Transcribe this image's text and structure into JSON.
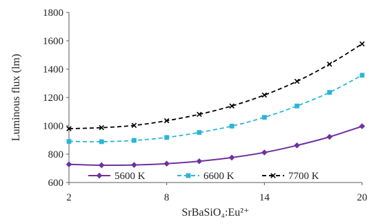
{
  "chart_data": {
    "type": "line",
    "xlabel": "SrBaSiO₄:Eu²⁺",
    "ylabel": "Luminous flux (lm)",
    "xlim": [
      2,
      20
    ],
    "ylim": [
      600,
      1800
    ],
    "xticks": [
      2,
      8,
      14,
      20
    ],
    "yticks": [
      600,
      800,
      1000,
      1200,
      1400,
      1600,
      1800
    ],
    "grid": false,
    "legend_position": "bottom-inside",
    "x": [
      2,
      4,
      6,
      8,
      10,
      12,
      14,
      16,
      18,
      20
    ],
    "series": [
      {
        "name": "5600 K",
        "color": "#7030a0",
        "marker": "diamond",
        "dash": "solid",
        "values": [
          728,
          722,
          724,
          733,
          750,
          776,
          812,
          862,
          922,
          997
        ]
      },
      {
        "name": "6600 K",
        "color": "#2bb5d8",
        "marker": "square",
        "dash": "dashed",
        "values": [
          890,
          888,
          897,
          918,
          953,
          998,
          1060,
          1140,
          1236,
          1357
        ]
      },
      {
        "name": "7700 K",
        "color": "#000000",
        "marker": "cross",
        "dash": "dashed",
        "values": [
          980,
          987,
          1003,
          1036,
          1081,
          1140,
          1217,
          1314,
          1435,
          1578
        ]
      }
    ]
  }
}
